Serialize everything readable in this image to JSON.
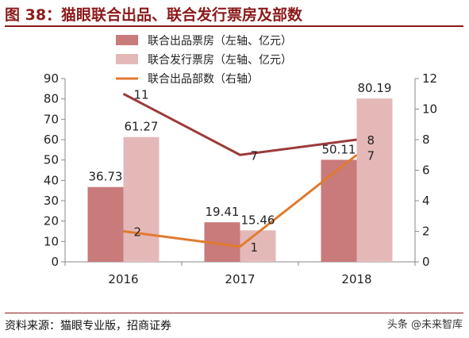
{
  "title": "图 38：猫眼联合出品、联合发行票房及部数",
  "source": "资料来源：猫眼专业版，招商证券",
  "watermark": "头条 @未来智库",
  "colors": {
    "accent": "#8b1a1a",
    "produce_bar": "#c97a7a",
    "distribute_bar": "#e5b8b8",
    "produce_count_line": "#e07b2e",
    "series4_line": "#9c3b3b"
  },
  "chart_data": {
    "type": "bar",
    "categories": [
      "2016",
      "2017",
      "2018"
    ],
    "ylim": [
      0,
      90
    ],
    "yticks": [
      0,
      10,
      20,
      30,
      40,
      50,
      60,
      70,
      80,
      90
    ],
    "y2lim": [
      0,
      12
    ],
    "y2ticks": [
      0,
      2,
      4,
      6,
      8,
      10,
      12
    ],
    "grid": false,
    "legend_position": "top-center",
    "series": [
      {
        "name": "联合出品票房（左轴、亿元）",
        "type": "bar",
        "axis": "left",
        "values": [
          36.73,
          19.41,
          50.11
        ],
        "labels": [
          "36.73",
          "19.41",
          "50.11"
        ]
      },
      {
        "name": "联合发行票房（左轴、亿元）",
        "type": "bar",
        "axis": "left",
        "values": [
          61.27,
          15.46,
          80.19
        ],
        "labels": [
          "61.27",
          "15.46",
          "80.19"
        ]
      },
      {
        "name": "联合出品部数（右轴）",
        "type": "line",
        "axis": "right",
        "values": [
          2,
          1,
          7
        ],
        "labels": [
          "2",
          "1",
          "7"
        ]
      },
      {
        "type": "line",
        "axis": "right",
        "values": [
          11,
          7,
          8
        ],
        "labels": [
          "11",
          "7",
          "8"
        ]
      }
    ]
  }
}
